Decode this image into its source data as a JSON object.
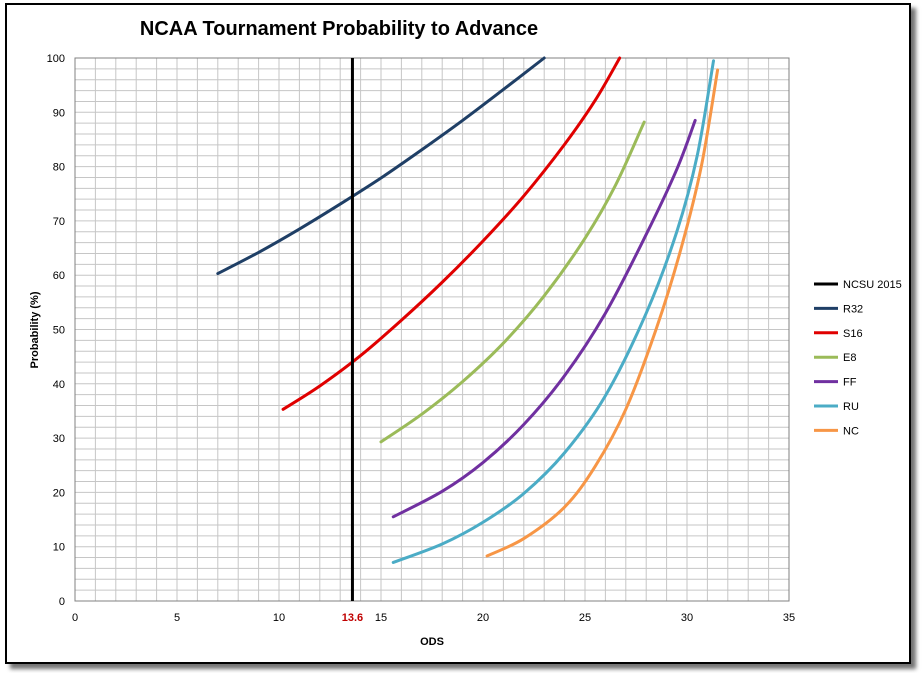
{
  "chart_data": {
    "type": "line",
    "title": "NCAA Tournament Probability to Advance",
    "xlabel": "ODS",
    "ylabel": "Probability (%)",
    "xlim": [
      0,
      35
    ],
    "ylim": [
      0,
      100
    ],
    "x_ticks": [
      0,
      5,
      10,
      15,
      20,
      25,
      30,
      35
    ],
    "y_ticks": [
      0,
      10,
      20,
      30,
      40,
      50,
      60,
      70,
      80,
      90,
      100
    ],
    "grid": true,
    "legend_position": "right",
    "reference_line": {
      "name": "NCSU 2015",
      "x": 13.6,
      "label": "13.6",
      "label_color": "#c00000",
      "color": "#000000"
    },
    "series": [
      {
        "name": "R32",
        "color": "#1f3f66",
        "x": [
          7,
          9,
          11,
          13,
          15,
          17,
          19,
          21,
          23
        ],
        "y": [
          60.3,
          64.2,
          68.5,
          73.1,
          77.9,
          83.1,
          88.5,
          94.2,
          100
        ]
      },
      {
        "name": "S16",
        "color": "#e00000",
        "x": [
          10.2,
          12,
          14,
          16,
          18,
          20,
          22,
          24,
          25.5,
          26.7
        ],
        "y": [
          35.3,
          39.6,
          45.2,
          51.7,
          58.7,
          66.3,
          74.6,
          84.1,
          92.2,
          100
        ]
      },
      {
        "name": "E8",
        "color": "#9bbb59",
        "x": [
          15,
          17,
          19,
          21,
          23,
          25,
          26.5,
          27.9
        ],
        "y": [
          29.3,
          34.4,
          40.4,
          47.5,
          56.2,
          66.8,
          76.6,
          88.2
        ]
      },
      {
        "name": "FF",
        "color": "#7030a0",
        "x": [
          15.6,
          18,
          20,
          22,
          24,
          26,
          28,
          29.5,
          30.4
        ],
        "y": [
          15.5,
          20.2,
          25.5,
          32.5,
          41.5,
          53.0,
          67.5,
          79.5,
          88.5
        ]
      },
      {
        "name": "RU",
        "color": "#4bacc6",
        "x": [
          15.6,
          18,
          20,
          22,
          24,
          26,
          28,
          29.5,
          30.5,
          31.3
        ],
        "y": [
          7.1,
          10.5,
          14.5,
          19.8,
          27.3,
          37.8,
          53.0,
          68.0,
          82.0,
          99.5
        ]
      },
      {
        "name": "NC",
        "color": "#f79646",
        "x": [
          20.2,
          22,
          24,
          25.5,
          27,
          28.5,
          29.7,
          30.7,
          31.5
        ],
        "y": [
          8.3,
          11.5,
          17.3,
          24.8,
          35.3,
          50.2,
          64.8,
          80.0,
          97.8
        ]
      }
    ]
  }
}
